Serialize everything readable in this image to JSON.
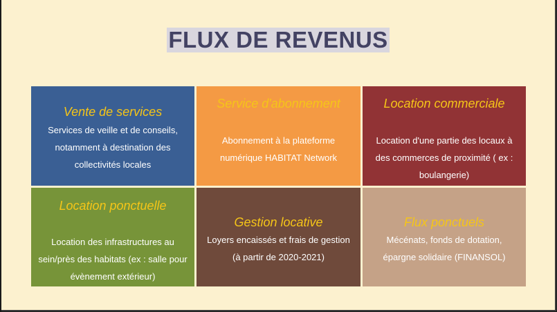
{
  "slide": {
    "title": "FLUX DE REVENUS",
    "colors": {
      "background": "#fcf1cf",
      "title": "#434263",
      "heading": "#f5c518",
      "blue": "#3a5f94",
      "orange": "#f49a44",
      "red": "#913335",
      "green": "#779439",
      "brown": "#6f4a3b",
      "tan": "#c5a287"
    },
    "cells": [
      {
        "heading": "Vente de services",
        "text": "Services de veille et de conseils, notamment à destination des collectivités locales"
      },
      {
        "heading": "Service d'abonnement",
        "text": "Abonnement à la plateforme numérique HABITAT Network"
      },
      {
        "heading": "Location commerciale",
        "text": "Location d'une partie des locaux à des commerces de proximité ( ex : boulangerie)"
      },
      {
        "heading": "Location ponctuelle",
        "text": "Location des infrastructures au sein/près des habitats (ex : salle pour évènement extérieur)"
      },
      {
        "heading": "Gestion locative",
        "text": "Loyers encaissés et frais de gestion (à partir de 2020-2021)"
      },
      {
        "heading": "Flux ponctuels",
        "text": "Mécénats, fonds de dotation, épargne solidaire (FINANSOL)"
      }
    ]
  }
}
